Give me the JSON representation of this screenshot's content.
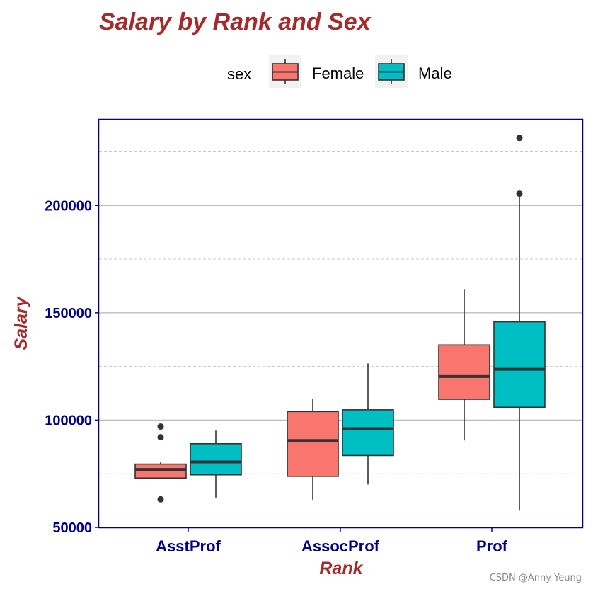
{
  "chart_data": {
    "type": "boxplot",
    "title": "Salary by Rank and Sex",
    "xlabel": "Rank",
    "ylabel": "Salary",
    "ylim": [
      50000,
      240000
    ],
    "yticks": [
      50000,
      100000,
      150000,
      200000
    ],
    "ytick_labels": [
      "50000",
      "100000",
      "150000",
      "200000"
    ],
    "minor_gridlines": [
      75000,
      125000,
      175000,
      225000
    ],
    "categories": [
      "AsstProf",
      "AssocProf",
      "Prof"
    ],
    "legend": {
      "title": "sex",
      "position": "top"
    },
    "series": [
      {
        "name": "Female",
        "color": "#F8766D",
        "boxes": [
          {
            "category": "AsstProf",
            "min": 72500,
            "q1": 73000,
            "median": 77000,
            "q3": 79500,
            "max": 80500,
            "outliers": [
              97000,
              92000,
              63100
            ]
          },
          {
            "category": "AssocProf",
            "min": 62900,
            "q1": 73800,
            "median": 90500,
            "q3": 104000,
            "max": 109700,
            "outliers": []
          },
          {
            "category": "Prof",
            "min": 90500,
            "q1": 109700,
            "median": 120300,
            "q3": 135000,
            "max": 161100,
            "outliers": []
          }
        ]
      },
      {
        "name": "Male",
        "color": "#00BFC4",
        "boxes": [
          {
            "category": "AsstProf",
            "min": 63900,
            "q1": 74500,
            "median": 80500,
            "q3": 89000,
            "max": 95100,
            "outliers": []
          },
          {
            "category": "AssocProf",
            "min": 70000,
            "q1": 83500,
            "median": 96000,
            "q3": 104800,
            "max": 126400,
            "outliers": []
          },
          {
            "category": "Prof",
            "min": 57800,
            "q1": 106000,
            "median": 123700,
            "q3": 145800,
            "max": 205500,
            "outliers": [
              231500,
              205500
            ]
          }
        ]
      }
    ]
  },
  "colors": {
    "title": "#A52A2A",
    "axis_title": "#A52A2A",
    "tick_text": "#00008B",
    "panel_border": "#00008B",
    "grid_major": "#BEBEBE",
    "grid_minor": "#C8C8C8",
    "box_line": "#333333"
  },
  "watermark": "CSDN @Anny Yeung"
}
